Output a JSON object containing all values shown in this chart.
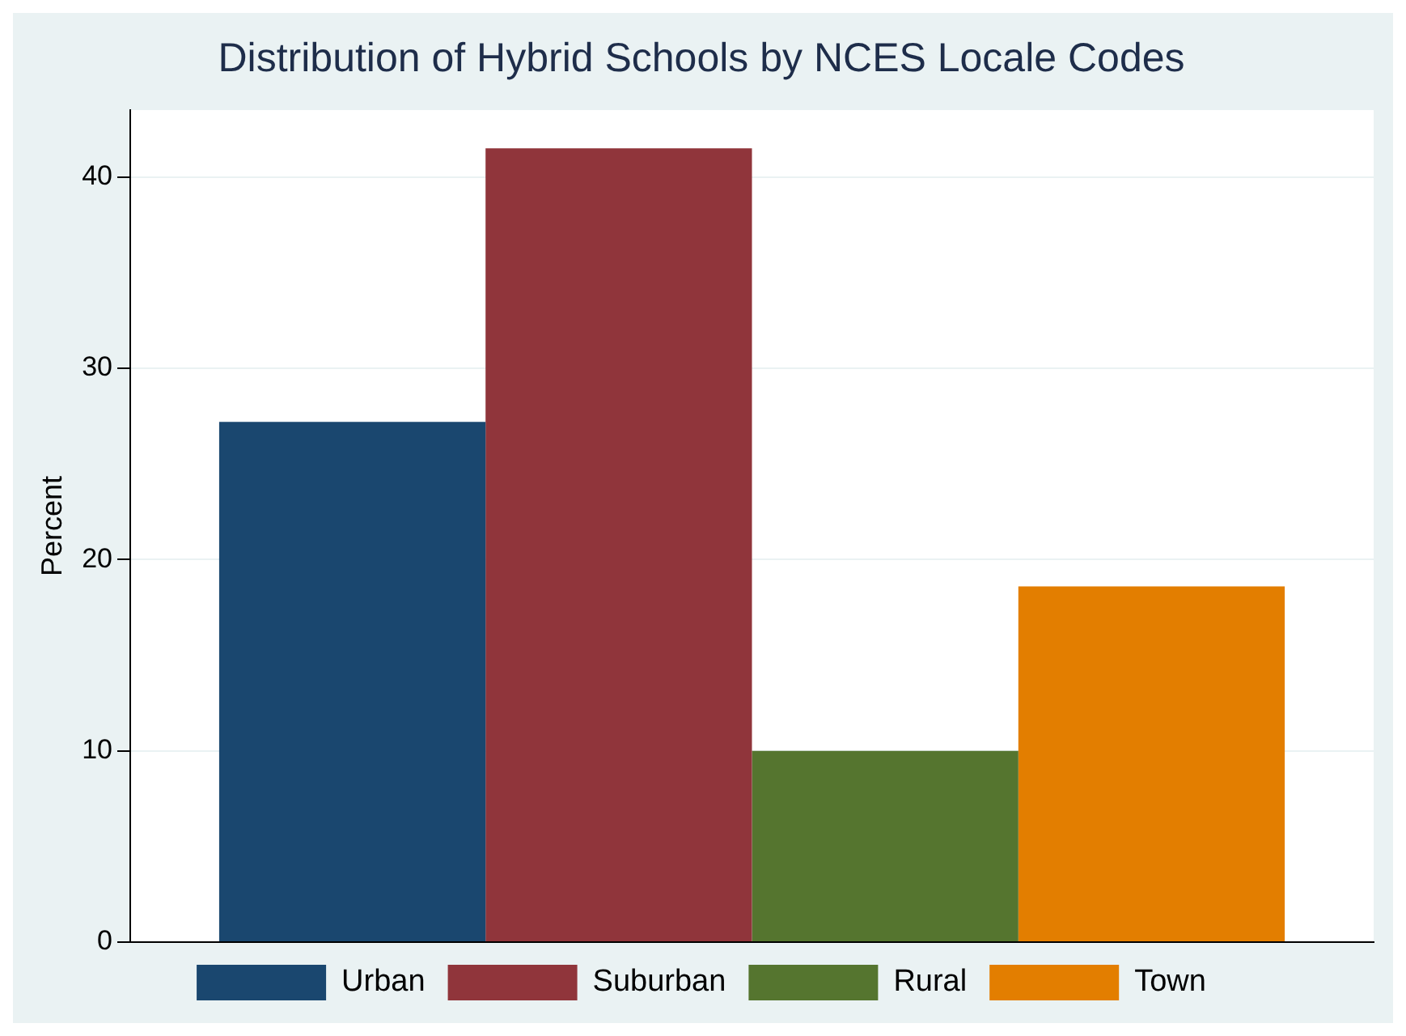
{
  "chart_data": {
    "type": "bar",
    "title": "Distribution of Hybrid Schools by NCES Locale Codes",
    "ylabel": "Percent",
    "categories": [
      null
    ],
    "series": [
      {
        "name": "Urban",
        "color": "#1a476f",
        "values": [
          27.2
        ]
      },
      {
        "name": "Suburban",
        "color": "#90353b",
        "values": [
          41.5
        ]
      },
      {
        "name": "Rural",
        "color": "#55752f",
        "values": [
          10.0
        ]
      },
      {
        "name": "Town",
        "color": "#e37e00",
        "values": [
          18.6
        ]
      }
    ],
    "ylim": [
      0,
      43.5
    ],
    "yticks": [
      0,
      10,
      20,
      30,
      40
    ],
    "grid": "y",
    "legend": "bottom"
  }
}
